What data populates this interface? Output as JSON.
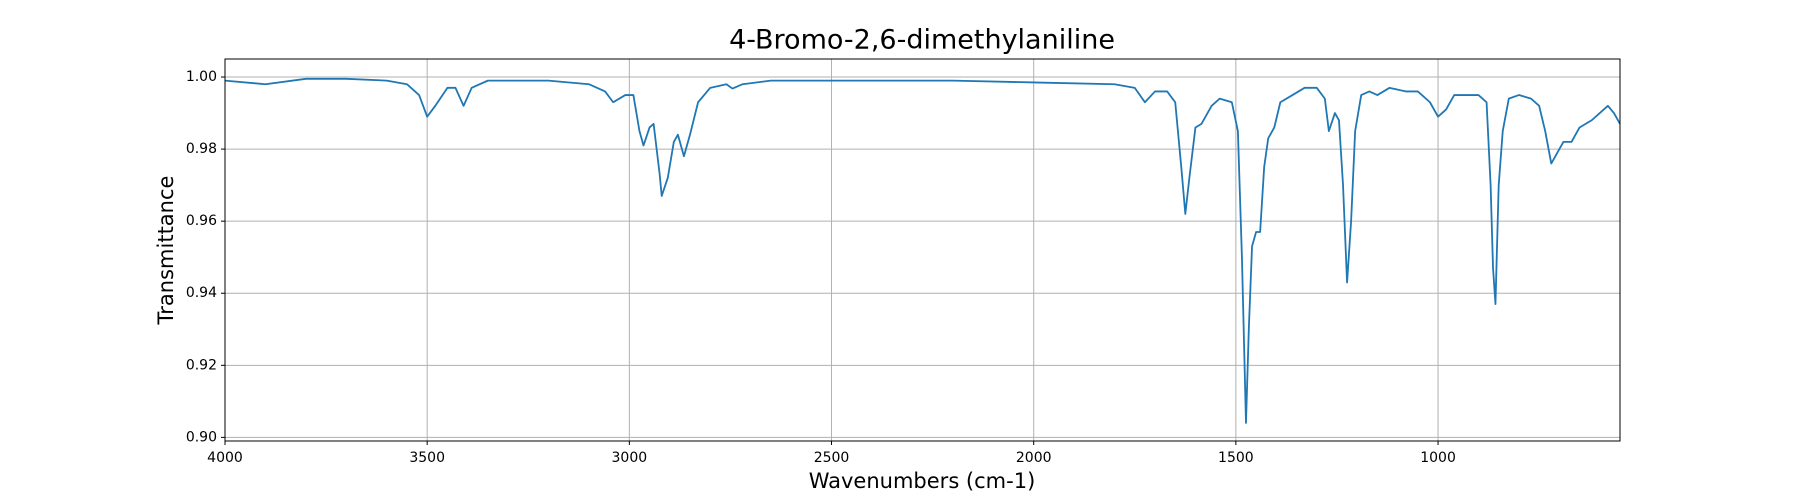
{
  "chart_data": {
    "type": "line",
    "title": "4-Bromo-2,6-dimethylaniline",
    "x_label": "Wavenumbers (cm-1)",
    "y_label": "Transmittance",
    "color": "#1f77b4",
    "grid": true,
    "xlim": [
      4000,
      550
    ],
    "ylim": [
      0.899,
      1.005
    ],
    "xticks": [
      4000,
      3500,
      3000,
      2500,
      2000,
      1500,
      1000
    ],
    "yticks": [
      {
        "value": 0.9,
        "label": "0.90"
      },
      0.92,
      0.94,
      0.96,
      0.98,
      {
        "value": 1,
        "label": "1.00"
      }
    ],
    "x": [
      4000,
      3900,
      3800,
      3700,
      3600,
      3550,
      3520,
      3500,
      3480,
      3450,
      3430,
      3410,
      3390,
      3350,
      3200,
      3100,
      3060,
      3040,
      3010,
      2990,
      2975,
      2965,
      2950,
      2940,
      2925,
      2920,
      2905,
      2890,
      2880,
      2865,
      2850,
      2830,
      2800,
      2760,
      2745,
      2720,
      2650,
      2500,
      2200,
      2000,
      1800,
      1750,
      1725,
      1700,
      1670,
      1650,
      1635,
      1625,
      1615,
      1600,
      1585,
      1560,
      1540,
      1510,
      1495,
      1485,
      1475,
      1468,
      1460,
      1450,
      1440,
      1430,
      1420,
      1405,
      1390,
      1360,
      1330,
      1300,
      1280,
      1270,
      1255,
      1245,
      1235,
      1225,
      1215,
      1205,
      1190,
      1170,
      1150,
      1120,
      1080,
      1050,
      1020,
      1000,
      980,
      960,
      930,
      900,
      880,
      870,
      864,
      858,
      850,
      840,
      825,
      800,
      770,
      750,
      735,
      720,
      705,
      690,
      670,
      650,
      620,
      600,
      580,
      565,
      550
    ],
    "values": [
      0.999,
      0.998,
      0.9995,
      0.9995,
      0.999,
      0.998,
      0.995,
      0.989,
      0.992,
      0.997,
      0.997,
      0.992,
      0.997,
      0.999,
      0.999,
      0.998,
      0.996,
      0.993,
      0.995,
      0.995,
      0.985,
      0.981,
      0.986,
      0.987,
      0.973,
      0.967,
      0.972,
      0.982,
      0.984,
      0.978,
      0.984,
      0.993,
      0.997,
      0.998,
      0.9968,
      0.998,
      0.999,
      0.999,
      0.999,
      0.9985,
      0.998,
      0.997,
      0.993,
      0.996,
      0.996,
      0.993,
      0.975,
      0.962,
      0.972,
      0.986,
      0.987,
      0.992,
      0.994,
      0.993,
      0.985,
      0.95,
      0.904,
      0.93,
      0.953,
      0.957,
      0.957,
      0.975,
      0.983,
      0.986,
      0.993,
      0.995,
      0.997,
      0.997,
      0.994,
      0.985,
      0.99,
      0.988,
      0.97,
      0.943,
      0.96,
      0.985,
      0.995,
      0.996,
      0.995,
      0.997,
      0.996,
      0.996,
      0.993,
      0.989,
      0.991,
      0.995,
      0.995,
      0.995,
      0.993,
      0.97,
      0.947,
      0.937,
      0.97,
      0.985,
      0.994,
      0.995,
      0.994,
      0.992,
      0.985,
      0.976,
      0.979,
      0.982,
      0.982,
      0.986,
      0.988,
      0.99,
      0.992,
      0.99,
      0.987
    ]
  }
}
